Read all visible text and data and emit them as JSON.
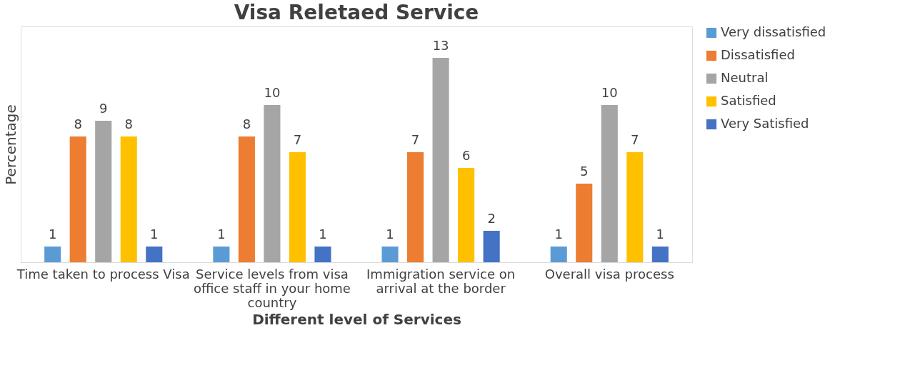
{
  "chart_data": {
    "type": "bar",
    "title": "Visa Reletaed Service",
    "xlabel": "Different level of Services",
    "ylabel": "Percentage",
    "categories": [
      "Time taken to process Visa",
      "Service levels from visa office staff in your home country",
      "Immigration service on arrival at the border",
      "Overall visa process"
    ],
    "series": [
      {
        "name": "Very dissatisfied",
        "color": "#5b9bd5",
        "values": [
          1,
          1,
          1,
          1
        ]
      },
      {
        "name": "Dissatisfied",
        "color": "#ed7d31",
        "values": [
          8,
          8,
          7,
          5
        ]
      },
      {
        "name": "Neutral",
        "color": "#a5a5a5",
        "values": [
          9,
          10,
          13,
          10
        ]
      },
      {
        "name": "Satisfied",
        "color": "#ffc000",
        "values": [
          8,
          7,
          6,
          7
        ]
      },
      {
        "name": "Very Satisfied",
        "color": "#4472c4",
        "values": [
          1,
          1,
          2,
          1
        ]
      }
    ],
    "ylim": [
      0,
      15
    ],
    "data_labels": true,
    "legend": "right",
    "tick_labels": "x",
    "grid": false
  }
}
